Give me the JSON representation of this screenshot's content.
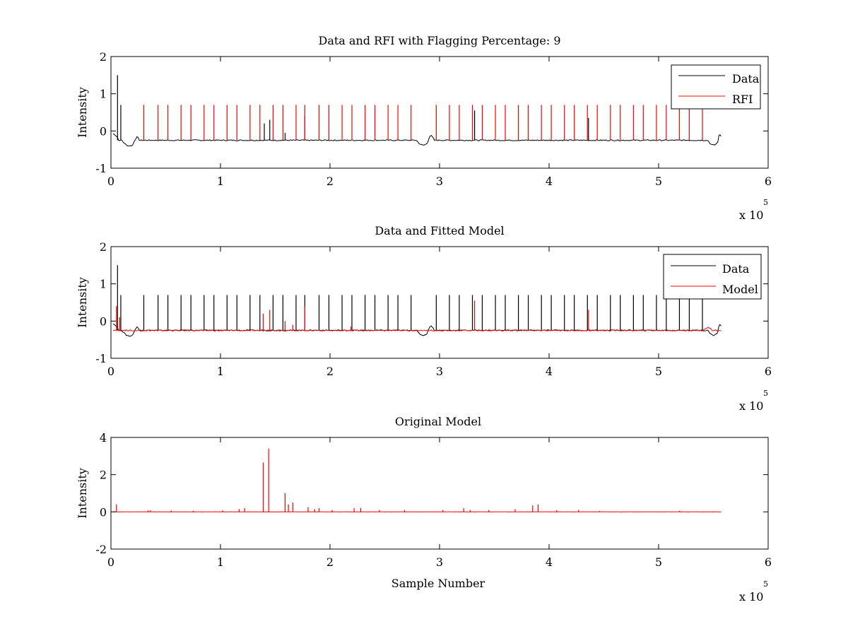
{
  "chart_data": [
    {
      "type": "line",
      "title": "Data and RFI with Flagging Percentage: 9",
      "xlabel": "",
      "ylabel": "Intensity",
      "xlim": [
        0,
        6
      ],
      "ylim": [
        -1,
        2
      ],
      "xticks": [
        "0",
        "1",
        "2",
        "3",
        "4",
        "5",
        "6"
      ],
      "yticks": [
        "-1",
        "0",
        "1",
        "2"
      ],
      "x_exponent_label": "x 10",
      "x_exponent_power": "5",
      "legend_position": "top-right",
      "baseline": -0.25,
      "series": [
        {
          "name": "Data",
          "color": "#000000",
          "spikes": [
            [
              0.06,
              1.5
            ],
            [
              0.09,
              0.7
            ],
            [
              1.4,
              0.2
            ],
            [
              1.45,
              0.3
            ],
            [
              1.59,
              -0.05
            ],
            [
              1.77,
              0.4
            ],
            [
              3.32,
              0.55
            ],
            [
              4.36,
              0.35
            ]
          ]
        },
        {
          "name": "RFI",
          "color": "#ff0000",
          "spikes": [
            [
              0.3,
              0.7
            ],
            [
              0.43,
              0.7
            ],
            [
              0.52,
              0.7
            ],
            [
              0.64,
              0.7
            ],
            [
              0.73,
              0.7
            ],
            [
              0.85,
              0.7
            ],
            [
              0.94,
              0.7
            ],
            [
              1.06,
              0.7
            ],
            [
              1.15,
              0.7
            ],
            [
              1.27,
              0.7
            ],
            [
              1.36,
              0.7
            ],
            [
              1.48,
              0.7
            ],
            [
              1.57,
              0.7
            ],
            [
              1.69,
              0.7
            ],
            [
              1.77,
              0.7
            ],
            [
              1.9,
              0.7
            ],
            [
              1.99,
              0.7
            ],
            [
              2.11,
              0.7
            ],
            [
              2.2,
              0.7
            ],
            [
              2.32,
              0.7
            ],
            [
              2.41,
              0.7
            ],
            [
              2.53,
              0.7
            ],
            [
              2.62,
              0.7
            ],
            [
              2.74,
              0.7
            ],
            [
              2.97,
              0.7
            ],
            [
              3.09,
              0.7
            ],
            [
              3.18,
              0.7
            ],
            [
              3.3,
              0.7
            ],
            [
              3.39,
              0.7
            ],
            [
              3.51,
              0.7
            ],
            [
              3.6,
              0.7
            ],
            [
              3.72,
              0.7
            ],
            [
              3.81,
              0.7
            ],
            [
              3.93,
              0.7
            ],
            [
              4.02,
              0.7
            ],
            [
              4.14,
              0.7
            ],
            [
              4.23,
              0.7
            ],
            [
              4.35,
              0.7
            ],
            [
              4.44,
              0.7
            ],
            [
              4.56,
              0.7
            ],
            [
              4.65,
              0.7
            ],
            [
              4.77,
              0.7
            ],
            [
              4.86,
              0.7
            ],
            [
              4.98,
              0.7
            ],
            [
              5.07,
              0.7
            ],
            [
              5.19,
              0.7
            ],
            [
              5.28,
              0.7
            ],
            [
              5.4,
              0.7
            ]
          ]
        }
      ]
    },
    {
      "type": "line",
      "title": "Data and Fitted Model",
      "xlabel": "",
      "ylabel": "Intensity",
      "xlim": [
        0,
        6
      ],
      "ylim": [
        -1,
        2
      ],
      "xticks": [
        "0",
        "1",
        "2",
        "3",
        "4",
        "5",
        "6"
      ],
      "yticks": [
        "-1",
        "0",
        "1",
        "2"
      ],
      "x_exponent_label": "x 10",
      "x_exponent_power": "5",
      "legend_position": "top-right",
      "baseline": -0.25,
      "series": [
        {
          "name": "Data",
          "color": "#000000",
          "spikes": [
            [
              0.06,
              1.5
            ],
            [
              0.09,
              0.7
            ],
            [
              0.3,
              0.7
            ],
            [
              0.43,
              0.7
            ],
            [
              0.52,
              0.7
            ],
            [
              0.64,
              0.7
            ],
            [
              0.73,
              0.7
            ],
            [
              0.85,
              0.7
            ],
            [
              0.94,
              0.7
            ],
            [
              1.06,
              0.7
            ],
            [
              1.15,
              0.7
            ],
            [
              1.27,
              0.7
            ],
            [
              1.36,
              0.7
            ],
            [
              1.48,
              0.7
            ],
            [
              1.57,
              0.7
            ],
            [
              1.69,
              0.7
            ],
            [
              1.77,
              0.7
            ],
            [
              1.9,
              0.7
            ],
            [
              1.99,
              0.7
            ],
            [
              2.11,
              0.7
            ],
            [
              2.2,
              0.7
            ],
            [
              2.32,
              0.7
            ],
            [
              2.41,
              0.7
            ],
            [
              2.53,
              0.7
            ],
            [
              2.62,
              0.7
            ],
            [
              2.74,
              0.7
            ],
            [
              2.97,
              0.7
            ],
            [
              3.09,
              0.7
            ],
            [
              3.18,
              0.7
            ],
            [
              3.3,
              0.7
            ],
            [
              3.39,
              0.7
            ],
            [
              3.51,
              0.7
            ],
            [
              3.6,
              0.7
            ],
            [
              3.72,
              0.7
            ],
            [
              3.81,
              0.7
            ],
            [
              3.93,
              0.7
            ],
            [
              4.02,
              0.7
            ],
            [
              4.14,
              0.7
            ],
            [
              4.23,
              0.7
            ],
            [
              4.35,
              0.7
            ],
            [
              4.44,
              0.7
            ],
            [
              4.56,
              0.7
            ],
            [
              4.65,
              0.7
            ],
            [
              4.77,
              0.7
            ],
            [
              4.86,
              0.7
            ],
            [
              4.98,
              0.7
            ],
            [
              5.07,
              0.7
            ],
            [
              5.19,
              0.7
            ],
            [
              5.28,
              0.7
            ],
            [
              5.4,
              0.7
            ]
          ]
        },
        {
          "name": "Model",
          "color": "#ff0000",
          "spikes": [
            [
              0.05,
              0.4
            ],
            [
              0.08,
              0.1
            ],
            [
              1.39,
              0.2
            ],
            [
              1.45,
              0.3
            ],
            [
              1.59,
              0.0
            ],
            [
              1.66,
              -0.1
            ],
            [
              1.77,
              0.4
            ],
            [
              2.19,
              -0.15
            ],
            [
              3.32,
              0.55
            ],
            [
              4.36,
              0.3
            ]
          ]
        }
      ]
    },
    {
      "type": "line",
      "title": "Original Model",
      "xlabel": "Sample Number",
      "ylabel": "Intensity",
      "xlim": [
        0,
        6
      ],
      "ylim": [
        -2,
        4
      ],
      "xticks": [
        "0",
        "1",
        "2",
        "3",
        "4",
        "5",
        "6"
      ],
      "yticks": [
        "-2",
        "0",
        "2",
        "4"
      ],
      "x_exponent_label": "x 10",
      "x_exponent_power": "5",
      "baseline": 0,
      "series": [
        {
          "name": "",
          "color": "#ff0000",
          "spikes": [
            [
              0.05,
              0.4
            ],
            [
              0.34,
              0.08
            ],
            [
              0.36,
              0.08
            ],
            [
              0.55,
              0.08
            ],
            [
              0.75,
              0.06
            ],
            [
              1.02,
              0.08
            ],
            [
              1.17,
              0.15
            ],
            [
              1.22,
              0.2
            ],
            [
              1.39,
              2.65
            ],
            [
              1.44,
              3.4
            ],
            [
              1.59,
              1.0
            ],
            [
              1.62,
              0.4
            ],
            [
              1.66,
              0.5
            ],
            [
              1.8,
              0.25
            ],
            [
              1.86,
              0.15
            ],
            [
              1.9,
              0.2
            ],
            [
              2.02,
              0.1
            ],
            [
              2.22,
              0.2
            ],
            [
              2.28,
              0.2
            ],
            [
              2.45,
              0.1
            ],
            [
              2.68,
              0.1
            ],
            [
              3.03,
              0.1
            ],
            [
              3.22,
              0.2
            ],
            [
              3.28,
              0.1
            ],
            [
              3.45,
              0.1
            ],
            [
              3.69,
              0.15
            ],
            [
              3.85,
              0.35
            ],
            [
              3.9,
              0.4
            ],
            [
              4.07,
              0.1
            ],
            [
              4.27,
              0.1
            ],
            [
              4.46,
              0.05
            ],
            [
              5.19,
              0.05
            ]
          ]
        }
      ]
    }
  ],
  "legends": [
    {
      "items": [
        {
          "label": "Data",
          "color": "#000000"
        },
        {
          "label": "RFI",
          "color": "#ff0000"
        }
      ]
    },
    {
      "items": [
        {
          "label": "Data",
          "color": "#000000"
        },
        {
          "label": "Model",
          "color": "#ff0000"
        }
      ]
    }
  ]
}
